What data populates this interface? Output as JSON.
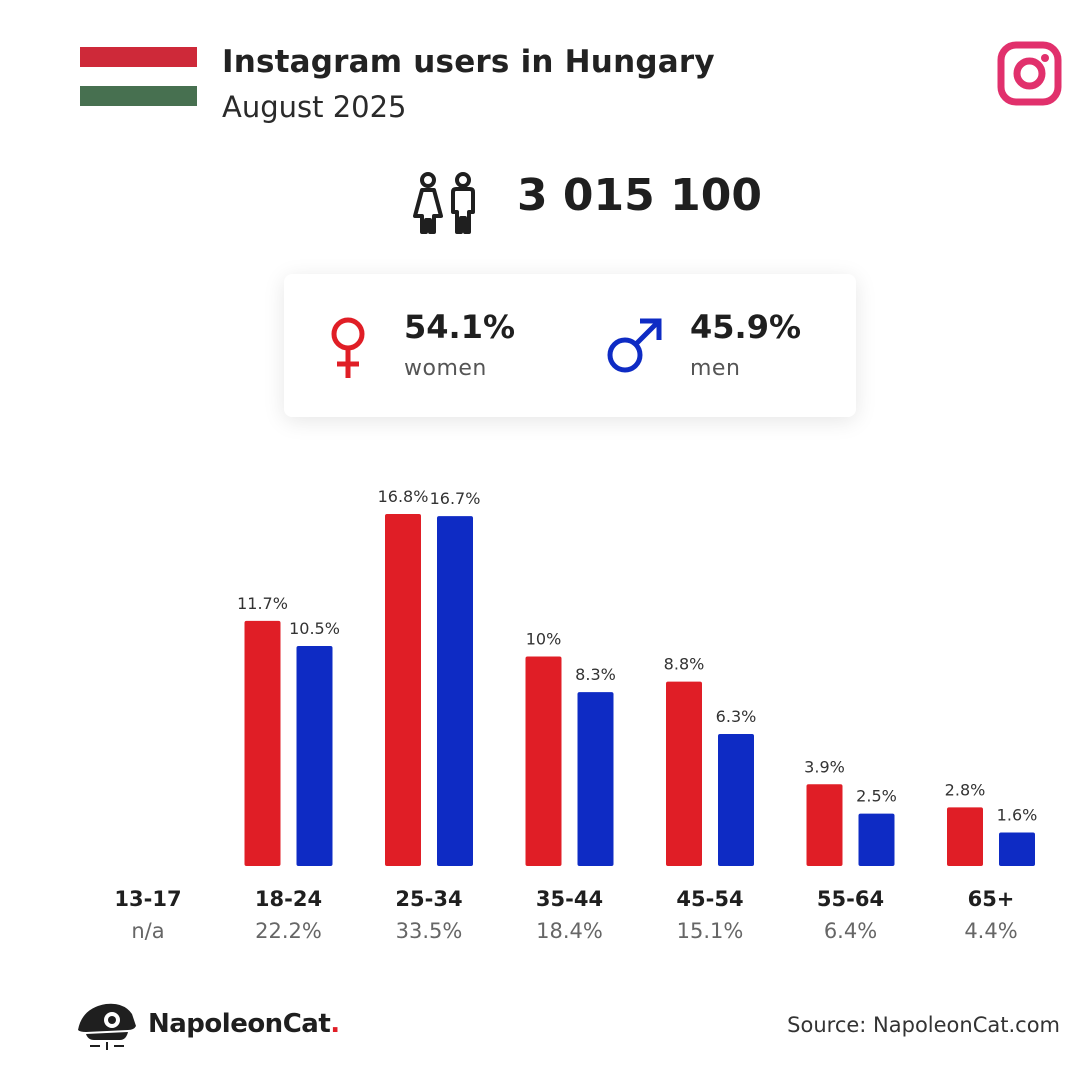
{
  "header": {
    "title": "Instagram users in Hungary",
    "subtitle": "August 2025",
    "flag_colors": [
      "#ce2939",
      "#ffffff",
      "#477050"
    ],
    "platform_icon": "instagram-icon",
    "platform_color": "#e1306c"
  },
  "totals": {
    "users_icon": "people-icon",
    "users": "3 015 100"
  },
  "gender": {
    "women": {
      "icon": "female-icon",
      "pct": "54.1%",
      "label": "women",
      "color": "#e01e26"
    },
    "men": {
      "icon": "male-icon",
      "pct": "45.9%",
      "label": "men",
      "color": "#0e2bc4"
    }
  },
  "chart_data": {
    "type": "bar",
    "categories": [
      "13-17",
      "18-24",
      "25-34",
      "35-44",
      "45-54",
      "55-64",
      "65+"
    ],
    "category_totals": [
      "n/a",
      "22.2%",
      "33.5%",
      "18.4%",
      "15.1%",
      "6.4%",
      "4.4%"
    ],
    "series": [
      {
        "color": "#e01e26",
        "values": [
          null,
          11.7,
          16.8,
          10,
          8.8,
          3.9,
          2.8
        ],
        "labels": [
          "",
          "11.7%",
          "16.8%",
          "10%",
          "8.8%",
          "3.9%",
          "2.8%"
        ]
      },
      {
        "color": "#0e2bc4",
        "values": [
          null,
          10.5,
          16.7,
          8.3,
          6.3,
          2.5,
          1.6
        ],
        "labels": [
          "",
          "10.5%",
          "16.7%",
          "8.3%",
          "6.3%",
          "2.5%",
          "1.6%"
        ]
      }
    ],
    "ylim": [
      0,
      16.8
    ],
    "grid": false,
    "legend": "none"
  },
  "footer": {
    "brand_logo": "napoleoncat-logo-icon",
    "brand": "NapoleonCat",
    "brand_dot": ".",
    "source": "Source: NapoleonCat.com"
  }
}
